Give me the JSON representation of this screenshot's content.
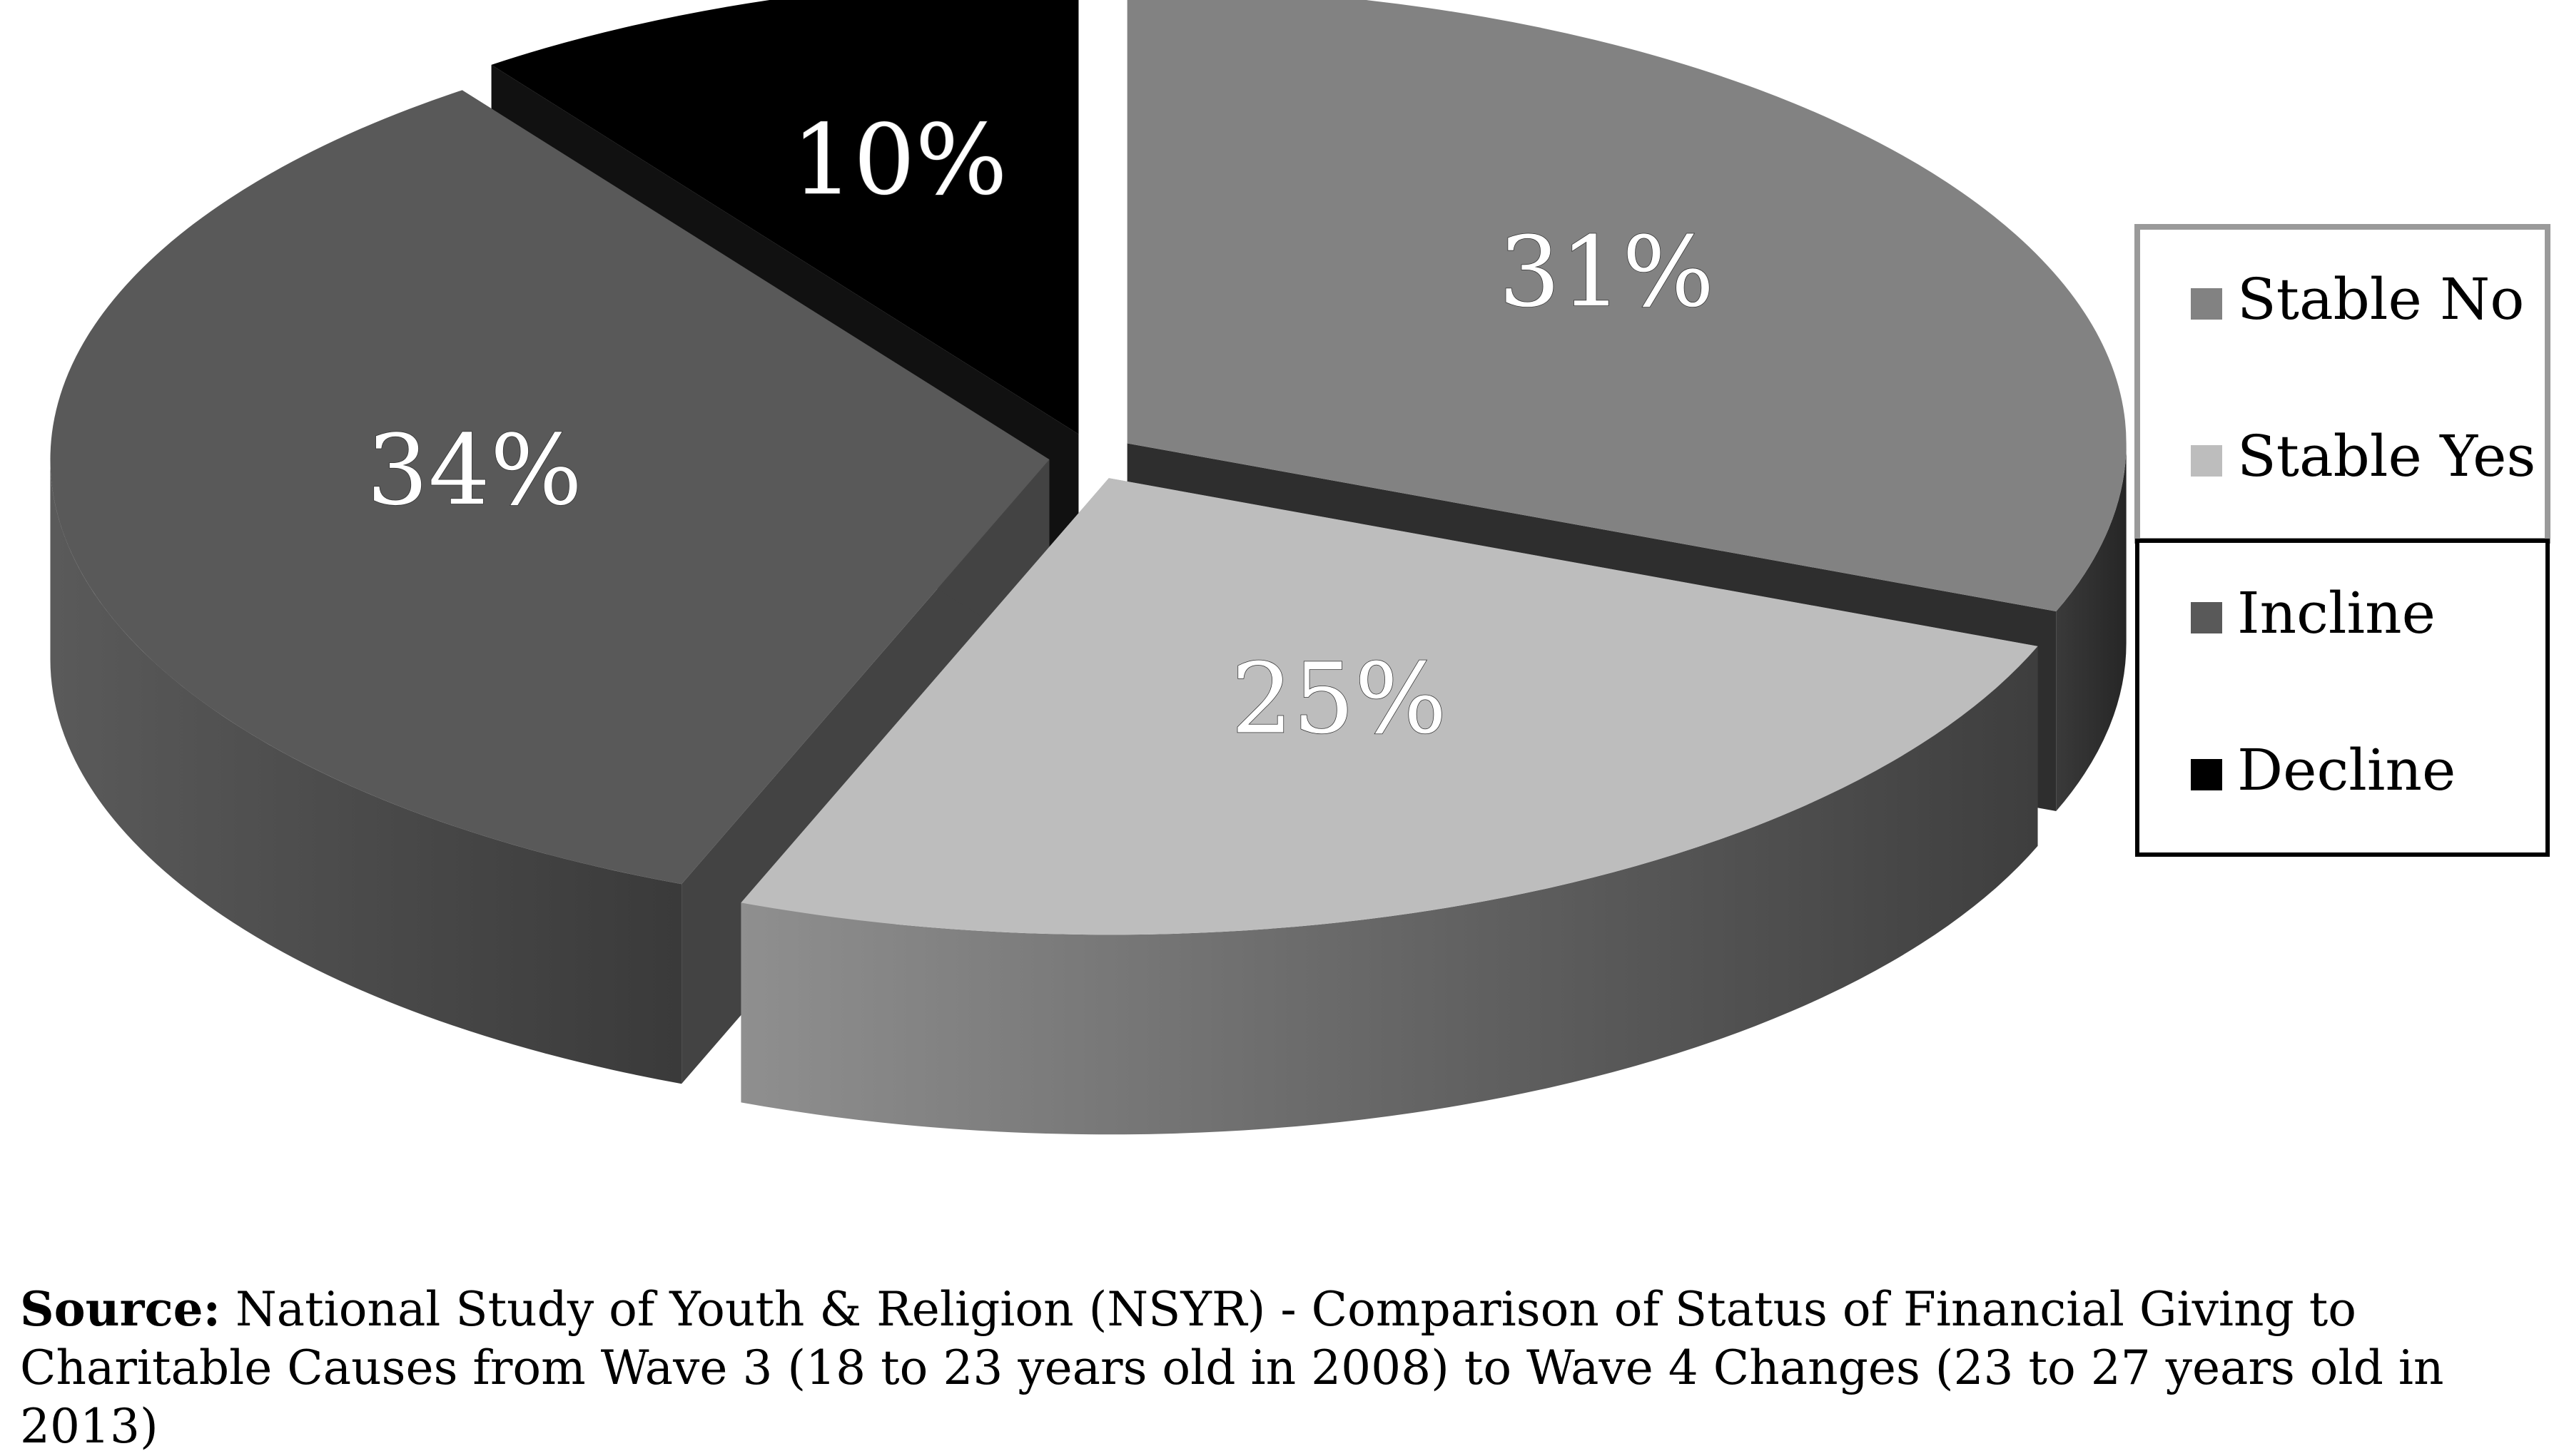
{
  "chart_data": {
    "type": "pie",
    "style": "3d-exploded",
    "categories": [
      "Stable No",
      "Stable Yes",
      "Incline",
      "Decline"
    ],
    "values": [
      31,
      25,
      34,
      10
    ],
    "data_labels": [
      "31%",
      "25%",
      "34%",
      "10%"
    ],
    "colors": {
      "Stable No": "#828282",
      "Stable Yes": "#bdbdbd",
      "Incline": "#595959",
      "Decline": "#000000"
    },
    "legend": {
      "placement": "right",
      "entries": [
        "Stable No",
        "Stable Yes",
        "Incline",
        "Decline"
      ]
    },
    "title": "",
    "xlabel": "",
    "ylabel": ""
  },
  "source": {
    "label": "Source:",
    "text": "National Study of Youth & Religion (NSYR) - Comparison of Status of Financial Giving to Charitable Causes from Wave 3 (18 to 23 years old in 2008) to Wave 4 Changes (23 to 27 years old in 2013)"
  }
}
